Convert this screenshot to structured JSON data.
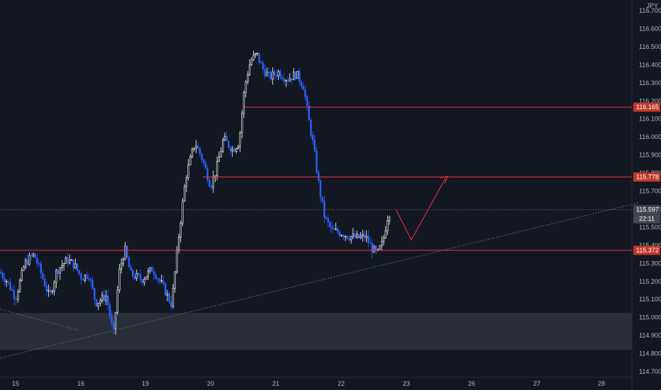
{
  "currency": "JPY",
  "colors": {
    "background": "#131722",
    "bull": "#ffffff",
    "bear": "#2962ff",
    "level_line": "#f23645",
    "level_badge": "#c0392b",
    "price_badge": "#434651",
    "zone_fill": "#2a2e39",
    "trendline": "#787b86"
  },
  "chart_data": {
    "type": "candlestick",
    "title": "",
    "x_tick_labels": [
      "15",
      "16",
      "19",
      "20",
      "21",
      "22",
      "23",
      "26",
      "27",
      "28"
    ],
    "y_tick_labels": [
      "114.700",
      "114.800",
      "114.900",
      "115.000",
      "115.100",
      "115.200",
      "115.300",
      "115.400",
      "115.500",
      "115.600",
      "115.700",
      "115.800",
      "115.900",
      "116.000",
      "116.100",
      "116.200",
      "116.300",
      "116.400",
      "116.500",
      "116.600",
      "116.700"
    ],
    "ylim": [
      114.7,
      116.73
    ],
    "price_levels": [
      {
        "value": 116.165,
        "label": "116.165"
      },
      {
        "value": 115.778,
        "label": "115.778"
      },
      {
        "value": 115.372,
        "label": "115.372"
      }
    ],
    "current_price": {
      "value": 115.597,
      "label": "115.597",
      "countdown": "22:11"
    },
    "support_zone": {
      "from": 114.82,
      "to": 115.025
    },
    "projection_path": [
      {
        "x": "22 late",
        "y": 115.6
      },
      {
        "x": "23",
        "y": 115.43
      },
      {
        "x": "23 late",
        "y": 115.77
      }
    ],
    "key_closes": [
      {
        "session": "15",
        "close": 115.16
      },
      {
        "session": "16",
        "close": 115.1
      },
      {
        "session": "16 low",
        "close": 114.87
      },
      {
        "session": "19",
        "close": 115.06
      },
      {
        "session": "20 high",
        "close": 115.97
      },
      {
        "session": "21 high",
        "close": 116.6
      },
      {
        "session": "21 close",
        "close": 116.17
      },
      {
        "session": "22 low",
        "close": 115.28
      },
      {
        "session": "22 last",
        "close": 115.597
      }
    ]
  }
}
